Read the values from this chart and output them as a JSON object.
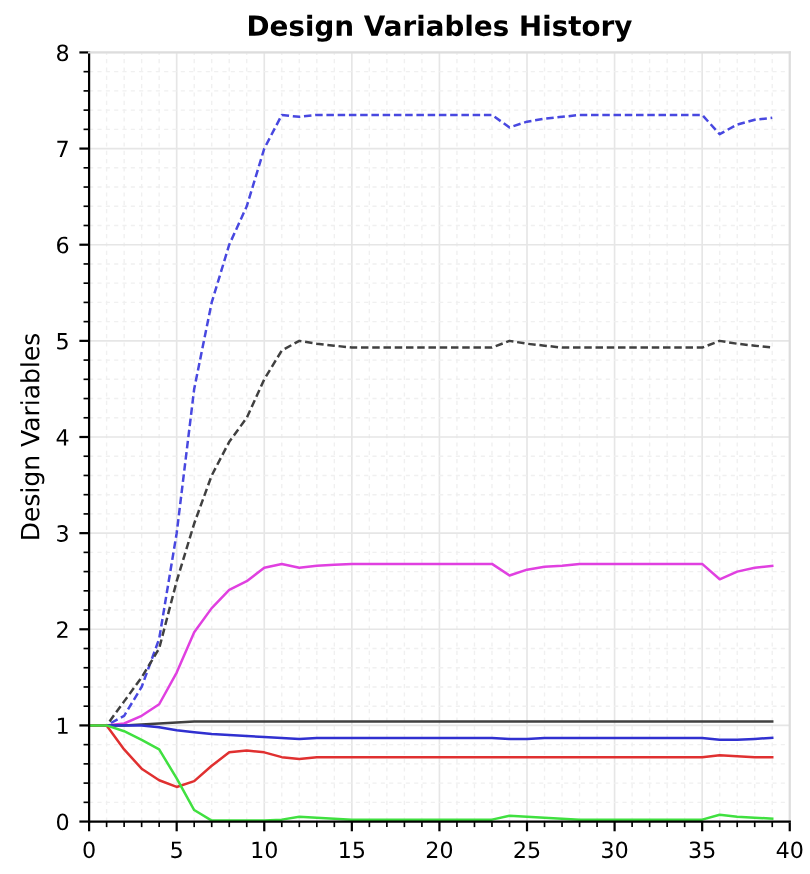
{
  "chart_data": {
    "type": "line",
    "title": "Design Variables History",
    "ylabel": "Design Variables",
    "x": [
      0,
      1,
      2,
      3,
      4,
      5,
      6,
      7,
      8,
      9,
      10,
      11,
      12,
      13,
      14,
      15,
      16,
      17,
      18,
      19,
      20,
      21,
      22,
      23,
      24,
      25,
      26,
      27,
      28,
      29,
      30,
      31,
      32,
      33,
      34,
      35,
      36,
      37,
      38,
      39
    ],
    "series": [
      {
        "color": "#4848e0",
        "line_style": "dashed",
        "values": [
          1,
          1,
          1.1,
          1.4,
          1.9,
          3.0,
          4.5,
          5.4,
          6.0,
          6.4,
          7.0,
          7.35,
          7.33,
          7.35,
          7.35,
          7.35,
          7.35,
          7.35,
          7.35,
          7.35,
          7.35,
          7.35,
          7.35,
          7.35,
          7.22,
          7.28,
          7.31,
          7.33,
          7.35,
          7.35,
          7.35,
          7.35,
          7.35,
          7.35,
          7.35,
          7.35,
          7.15,
          7.25,
          7.3,
          7.32
        ]
      },
      {
        "color": "#404040",
        "line_style": "dashed",
        "values": [
          1,
          1,
          1.25,
          1.5,
          1.8,
          2.5,
          3.1,
          3.6,
          3.95,
          4.2,
          4.6,
          4.9,
          5.0,
          4.97,
          4.95,
          4.93,
          4.93,
          4.93,
          4.93,
          4.93,
          4.93,
          4.93,
          4.93,
          4.93,
          5.0,
          4.97,
          4.95,
          4.93,
          4.93,
          4.93,
          4.93,
          4.93,
          4.93,
          4.93,
          4.93,
          4.93,
          5.0,
          4.97,
          4.95,
          4.93
        ]
      },
      {
        "color": "#e040e0",
        "line_style": "solid",
        "values": [
          1,
          1,
          1.02,
          1.1,
          1.22,
          1.55,
          1.97,
          2.22,
          2.41,
          2.5,
          2.64,
          2.68,
          2.64,
          2.66,
          2.67,
          2.68,
          2.68,
          2.68,
          2.68,
          2.68,
          2.68,
          2.68,
          2.68,
          2.68,
          2.56,
          2.62,
          2.65,
          2.66,
          2.68,
          2.68,
          2.68,
          2.68,
          2.68,
          2.68,
          2.68,
          2.68,
          2.52,
          2.6,
          2.64,
          2.66
        ]
      },
      {
        "color": "#404040",
        "line_style": "solid",
        "values": [
          1,
          1,
          1,
          1.01,
          1.02,
          1.03,
          1.04,
          1.04,
          1.04,
          1.04,
          1.04,
          1.04,
          1.04,
          1.04,
          1.04,
          1.04,
          1.04,
          1.04,
          1.04,
          1.04,
          1.04,
          1.04,
          1.04,
          1.04,
          1.04,
          1.04,
          1.04,
          1.04,
          1.04,
          1.04,
          1.04,
          1.04,
          1.04,
          1.04,
          1.04,
          1.04,
          1.04,
          1.04,
          1.04,
          1.04
        ]
      },
      {
        "color": "#3030d0",
        "line_style": "solid",
        "values": [
          1,
          1,
          1,
          1,
          0.98,
          0.95,
          0.93,
          0.91,
          0.9,
          0.89,
          0.88,
          0.87,
          0.86,
          0.87,
          0.87,
          0.87,
          0.87,
          0.87,
          0.87,
          0.87,
          0.87,
          0.87,
          0.87,
          0.87,
          0.86,
          0.86,
          0.87,
          0.87,
          0.87,
          0.87,
          0.87,
          0.87,
          0.87,
          0.87,
          0.87,
          0.87,
          0.85,
          0.85,
          0.86,
          0.87
        ]
      },
      {
        "color": "#e03030",
        "line_style": "solid",
        "values": [
          1,
          1,
          0.75,
          0.55,
          0.43,
          0.36,
          0.42,
          0.58,
          0.72,
          0.74,
          0.72,
          0.67,
          0.65,
          0.67,
          0.67,
          0.67,
          0.67,
          0.67,
          0.67,
          0.67,
          0.67,
          0.67,
          0.67,
          0.67,
          0.67,
          0.67,
          0.67,
          0.67,
          0.67,
          0.67,
          0.67,
          0.67,
          0.67,
          0.67,
          0.67,
          0.67,
          0.69,
          0.68,
          0.67,
          0.67
        ]
      },
      {
        "color": "#40e040",
        "line_style": "solid",
        "values": [
          1,
          1,
          0.94,
          0.85,
          0.75,
          0.45,
          0.12,
          0.01,
          0.01,
          0.01,
          0.01,
          0.02,
          0.05,
          0.04,
          0.03,
          0.02,
          0.02,
          0.02,
          0.02,
          0.02,
          0.02,
          0.02,
          0.02,
          0.02,
          0.06,
          0.05,
          0.04,
          0.03,
          0.02,
          0.02,
          0.02,
          0.02,
          0.02,
          0.02,
          0.02,
          0.02,
          0.07,
          0.05,
          0.04,
          0.03
        ]
      }
    ],
    "xlim": [
      0,
      40
    ],
    "ylim": [
      0,
      8
    ],
    "xticks": [
      0,
      5,
      10,
      15,
      20,
      25,
      30,
      35,
      40
    ],
    "yticks": [
      0,
      1,
      2,
      3,
      4,
      5,
      6,
      7,
      8
    ],
    "grid": true
  }
}
